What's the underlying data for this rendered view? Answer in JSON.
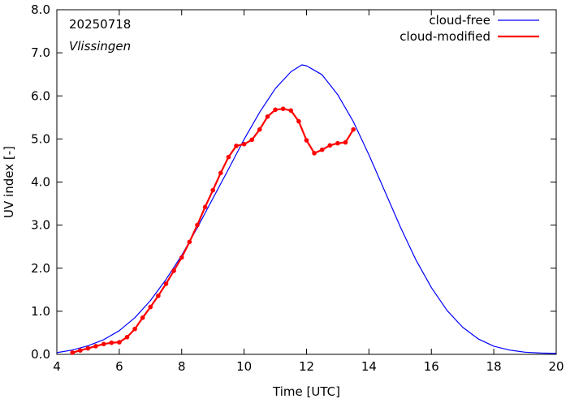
{
  "chart_data": {
    "type": "line",
    "date_label": "20250718",
    "location_label": "Vlissingen",
    "xlabel": "Time  [UTC]",
    "ylabel": "UV index  [-]",
    "xlim": [
      4,
      20
    ],
    "ylim": [
      0,
      8
    ],
    "x_ticks": [
      4,
      6,
      8,
      10,
      12,
      14,
      16,
      18,
      20
    ],
    "x_tick_labels": [
      "4",
      "6",
      "8",
      "10",
      "12",
      "14",
      "16",
      "18",
      "20"
    ],
    "y_ticks": [
      0,
      1,
      2,
      3,
      4,
      5,
      6,
      7,
      8
    ],
    "y_tick_labels": [
      "0.0",
      "1.0",
      "2.0",
      "3.0",
      "4.0",
      "5.0",
      "6.0",
      "7.0",
      "8.0"
    ],
    "grid": false,
    "legend_position": "top-right",
    "series": [
      {
        "name": "cloud-free",
        "color": "#0000ff",
        "x": [
          4.0,
          4.5,
          5.0,
          5.5,
          6.0,
          6.5,
          7.0,
          7.5,
          8.0,
          8.5,
          9.0,
          9.5,
          10.0,
          10.5,
          11.0,
          11.5,
          11.85,
          12.0,
          12.5,
          13.0,
          13.5,
          14.0,
          14.5,
          15.0,
          15.5,
          16.0,
          16.5,
          17.0,
          17.5,
          18.0,
          18.5,
          19.0,
          19.5,
          20.0
        ],
        "y": [
          0.04,
          0.1,
          0.2,
          0.34,
          0.55,
          0.85,
          1.25,
          1.74,
          2.3,
          2.94,
          3.62,
          4.3,
          4.99,
          5.62,
          6.17,
          6.56,
          6.72,
          6.7,
          6.49,
          6.03,
          5.4,
          4.63,
          3.8,
          2.97,
          2.2,
          1.55,
          1.02,
          0.63,
          0.36,
          0.19,
          0.1,
          0.05,
          0.03,
          0.02
        ]
      },
      {
        "name": "cloud-modified",
        "color": "#ff0000",
        "x": [
          4.5,
          4.75,
          5.0,
          5.25,
          5.5,
          5.75,
          6.0,
          6.25,
          6.5,
          6.75,
          7.0,
          7.25,
          7.5,
          7.75,
          8.0,
          8.25,
          8.5,
          8.75,
          9.0,
          9.25,
          9.5,
          9.75,
          10.0,
          10.25,
          10.5,
          10.75,
          11.0,
          11.25,
          11.5,
          11.75,
          12.0,
          12.25,
          12.5,
          12.75,
          13.0,
          13.25,
          13.5
        ],
        "y": [
          0.04,
          0.09,
          0.14,
          0.19,
          0.24,
          0.27,
          0.28,
          0.4,
          0.59,
          0.85,
          1.1,
          1.36,
          1.64,
          1.94,
          2.25,
          2.61,
          3.0,
          3.42,
          3.81,
          4.21,
          4.58,
          4.84,
          4.88,
          4.98,
          5.22,
          5.52,
          5.68,
          5.7,
          5.66,
          5.41,
          4.97,
          4.67,
          4.75,
          4.85,
          4.9,
          4.92,
          5.22
        ]
      }
    ]
  }
}
